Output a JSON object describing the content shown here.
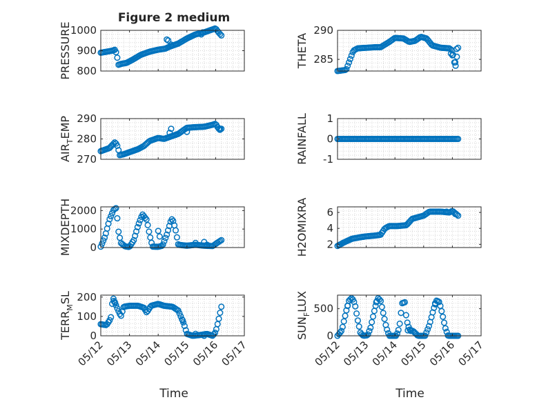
{
  "figure": {
    "title": "Figure 2 medium",
    "marker_color": "#0072BD",
    "grid": "dotted minor grid on",
    "x_axis_type": "date"
  },
  "chart_data": [
    {
      "id": "pressure",
      "type": "scatter",
      "ylabel_parts": [
        [
          "PRESSURE",
          ""
        ]
      ],
      "ylim": [
        800,
        1000
      ],
      "yticks": [
        800,
        900,
        1000
      ],
      "ytick_labels": [
        "800",
        "900",
        "1000"
      ],
      "xlim": [
        "05/12",
        "05/17"
      ],
      "xtick_labels": [],
      "x_day_range": [
        0,
        4.2
      ],
      "keypoints": [
        [
          0,
          890
        ],
        [
          0.4,
          900
        ],
        [
          0.5,
          905
        ],
        [
          0.55,
          885
        ],
        [
          0.62,
          830
        ],
        [
          0.7,
          835
        ],
        [
          0.9,
          840
        ],
        [
          1.1,
          855
        ],
        [
          1.4,
          880
        ],
        [
          1.7,
          895
        ],
        [
          2.0,
          905
        ],
        [
          2.25,
          910
        ],
        [
          2.4,
          920
        ],
        [
          2.7,
          935
        ],
        [
          3.0,
          960
        ],
        [
          3.3,
          980
        ],
        [
          3.6,
          990
        ],
        [
          3.9,
          1005
        ],
        [
          4.0,
          1010
        ],
        [
          4.1,
          990
        ],
        [
          4.2,
          975
        ]
      ],
      "extra_points": [
        [
          2.3,
          955
        ],
        [
          2.35,
          950
        ],
        [
          2.45,
          930
        ],
        [
          3.5,
          980
        ],
        [
          3.55,
          990
        ]
      ]
    },
    {
      "id": "theta",
      "type": "scatter",
      "ylabel_parts": [
        [
          "THETA",
          ""
        ]
      ],
      "ylim": [
        283,
        290
      ],
      "yticks": [
        285,
        290
      ],
      "ytick_labels": [
        "285",
        "290"
      ],
      "xlim": [
        "05/12",
        "05/17"
      ],
      "xtick_labels": [],
      "x_day_range": [
        0,
        4.2
      ],
      "keypoints": [
        [
          0,
          283
        ],
        [
          0.3,
          283.2
        ],
        [
          0.4,
          284.5
        ],
        [
          0.55,
          286.5
        ],
        [
          0.7,
          286.9
        ],
        [
          1.0,
          287
        ],
        [
          1.3,
          287.1
        ],
        [
          1.5,
          287.1
        ],
        [
          1.8,
          288
        ],
        [
          2.0,
          288.7
        ],
        [
          2.3,
          288.6
        ],
        [
          2.5,
          288
        ],
        [
          2.7,
          288.2
        ],
        [
          2.9,
          288.9
        ],
        [
          3.1,
          288.6
        ],
        [
          3.3,
          287.4
        ],
        [
          3.6,
          287
        ],
        [
          3.9,
          286.9
        ],
        [
          4.0,
          286.5
        ],
        [
          4.05,
          285
        ],
        [
          4.1,
          283.5
        ],
        [
          4.2,
          287
        ]
      ],
      "extra_points": [
        [
          3.95,
          286
        ],
        [
          4.0,
          285.7
        ],
        [
          4.1,
          284.5
        ],
        [
          4.15,
          286.8
        ]
      ]
    },
    {
      "id": "air_temp",
      "type": "scatter",
      "ylabel_parts": [
        [
          "AIR",
          ""
        ],
        [
          "T",
          "sub"
        ],
        [
          "EMP",
          ""
        ]
      ],
      "ylim": [
        270,
        290
      ],
      "yticks": [
        270,
        280,
        290
      ],
      "ytick_labels": [
        "270",
        "280",
        "290"
      ],
      "xlim": [
        "05/12",
        "05/17"
      ],
      "xtick_labels": [],
      "x_day_range": [
        0,
        4.2
      ],
      "keypoints": [
        [
          0,
          274
        ],
        [
          0.3,
          275.5
        ],
        [
          0.5,
          278.5
        ],
        [
          0.6,
          276
        ],
        [
          0.65,
          272
        ],
        [
          0.8,
          272.5
        ],
        [
          1.0,
          273.5
        ],
        [
          1.3,
          275
        ],
        [
          1.5,
          276.5
        ],
        [
          1.7,
          279
        ],
        [
          2.0,
          280.5
        ],
        [
          2.2,
          280
        ],
        [
          2.4,
          281
        ],
        [
          2.7,
          282.5
        ],
        [
          3.0,
          285.5
        ],
        [
          3.3,
          285.8
        ],
        [
          3.6,
          286
        ],
        [
          3.9,
          287
        ],
        [
          4.0,
          287.5
        ],
        [
          4.1,
          285
        ],
        [
          4.2,
          285
        ]
      ],
      "extra_points": [
        [
          2.4,
          283
        ],
        [
          2.45,
          285
        ],
        [
          3.0,
          283.5
        ],
        [
          4.15,
          284.5
        ]
      ]
    },
    {
      "id": "rainfall",
      "type": "scatter",
      "ylabel_parts": [
        [
          "RAINFALL",
          ""
        ]
      ],
      "ylim": [
        -1,
        1
      ],
      "yticks": [
        -1,
        0,
        1
      ],
      "ytick_labels": [
        "-1",
        "0",
        "1"
      ],
      "xlim": [
        "05/12",
        "05/17"
      ],
      "xtick_labels": [],
      "x_day_range": [
        0,
        4.2
      ],
      "keypoints": [
        [
          0,
          0
        ],
        [
          4.2,
          0
        ]
      ],
      "extra_points": []
    },
    {
      "id": "mixdepth",
      "type": "scatter",
      "ylabel_parts": [
        [
          "MIXDEPTH",
          ""
        ]
      ],
      "ylim": [
        0,
        2200
      ],
      "yticks": [
        0,
        1000,
        2000
      ],
      "ytick_labels": [
        "0",
        "1000",
        "2000"
      ],
      "xlim": [
        "05/12",
        "05/17"
      ],
      "xtick_labels": [],
      "x_day_range": [
        0,
        4.2
      ],
      "keypoints": [
        [
          0,
          50
        ],
        [
          0.15,
          600
        ],
        [
          0.3,
          1500
        ],
        [
          0.45,
          2050
        ],
        [
          0.55,
          2150
        ],
        [
          0.6,
          1000
        ],
        [
          0.7,
          250
        ],
        [
          0.85,
          60
        ],
        [
          1.0,
          30
        ],
        [
          1.15,
          400
        ],
        [
          1.3,
          1200
        ],
        [
          1.45,
          1800
        ],
        [
          1.6,
          1500
        ],
        [
          1.7,
          700
        ],
        [
          1.8,
          50
        ],
        [
          2.0,
          40
        ],
        [
          2.15,
          100
        ],
        [
          2.3,
          700
        ],
        [
          2.45,
          1500
        ],
        [
          2.5,
          1550
        ],
        [
          2.6,
          1000
        ],
        [
          2.7,
          150
        ],
        [
          3.0,
          100
        ],
        [
          3.3,
          150
        ],
        [
          3.6,
          100
        ],
        [
          3.9,
          80
        ],
        [
          4.05,
          250
        ],
        [
          4.2,
          400
        ]
      ],
      "extra_points": [
        [
          2.0,
          900
        ],
        [
          2.05,
          600
        ],
        [
          3.3,
          250
        ],
        [
          3.6,
          300
        ],
        [
          3.7,
          150
        ]
      ]
    },
    {
      "id": "h2omixra",
      "type": "scatter",
      "ylabel_parts": [
        [
          "H2OMIXRA",
          ""
        ]
      ],
      "ylim": [
        1.6,
        6.7
      ],
      "yticks": [
        2,
        4,
        6
      ],
      "ytick_labels": [
        "2",
        "4",
        "6"
      ],
      "xlim": [
        "05/12",
        "05/17"
      ],
      "xtick_labels": [],
      "x_day_range": [
        0,
        4.2
      ],
      "keypoints": [
        [
          0,
          1.8
        ],
        [
          0.2,
          2.2
        ],
        [
          0.5,
          2.7
        ],
        [
          0.8,
          2.9
        ],
        [
          1.0,
          3.0
        ],
        [
          1.3,
          3.1
        ],
        [
          1.5,
          3.2
        ],
        [
          1.65,
          4.0
        ],
        [
          1.8,
          4.3
        ],
        [
          2.1,
          4.3
        ],
        [
          2.4,
          4.4
        ],
        [
          2.6,
          5.2
        ],
        [
          2.9,
          5.5
        ],
        [
          3.0,
          5.6
        ],
        [
          3.2,
          6.1
        ],
        [
          3.6,
          6.1
        ],
        [
          3.9,
          6.0
        ],
        [
          4.0,
          6.2
        ],
        [
          4.2,
          5.6
        ]
      ],
      "extra_points": [
        [
          0.05,
          1.9
        ],
        [
          3.8,
          6.1
        ],
        [
          4.1,
          5.8
        ]
      ]
    },
    {
      "id": "terr_msl",
      "type": "scatter",
      "ylabel_parts": [
        [
          "TERR",
          ""
        ],
        [
          "M",
          "sub"
        ],
        [
          "SL",
          ""
        ]
      ],
      "ylim": [
        0,
        210
      ],
      "yticks": [
        0,
        100,
        200
      ],
      "ytick_labels": [
        "0",
        "100",
        "200"
      ],
      "xlim": [
        "05/12",
        "05/17"
      ],
      "xtick_labels": [
        "05/12",
        "05/13",
        "05/14",
        "05/15",
        "05/16",
        "05/17"
      ],
      "x_day_range": [
        0,
        4.2
      ],
      "keypoints": [
        [
          0,
          60
        ],
        [
          0.2,
          55
        ],
        [
          0.35,
          90
        ],
        [
          0.42,
          200
        ],
        [
          0.55,
          150
        ],
        [
          0.7,
          100
        ],
        [
          0.8,
          150
        ],
        [
          1.0,
          155
        ],
        [
          1.3,
          155
        ],
        [
          1.5,
          145
        ],
        [
          1.6,
          120
        ],
        [
          1.75,
          155
        ],
        [
          2.0,
          165
        ],
        [
          2.2,
          155
        ],
        [
          2.5,
          150
        ],
        [
          2.7,
          130
        ],
        [
          2.9,
          60
        ],
        [
          3.0,
          10
        ],
        [
          3.2,
          0
        ],
        [
          3.5,
          5
        ],
        [
          3.7,
          10
        ],
        [
          3.9,
          0
        ],
        [
          4.0,
          20
        ],
        [
          4.1,
          80
        ],
        [
          4.2,
          150
        ]
      ],
      "extra_points": [
        [
          0.45,
          180
        ],
        [
          0.5,
          170
        ],
        [
          2.85,
          80
        ],
        [
          3.3,
          10
        ],
        [
          3.6,
          0
        ]
      ]
    },
    {
      "id": "sun_flux",
      "type": "scatter",
      "ylabel_parts": [
        [
          "SUN",
          ""
        ],
        [
          "F",
          "sub"
        ],
        [
          "LUX",
          ""
        ]
      ],
      "ylim": [
        0,
        750
      ],
      "yticks": [
        0,
        500
      ],
      "ytick_labels": [
        "0",
        "500"
      ],
      "xlim": [
        "05/12",
        "05/17"
      ],
      "xtick_labels": [
        "05/12",
        "05/13",
        "05/14",
        "05/15",
        "05/16",
        "05/17"
      ],
      "x_day_range": [
        0,
        4.2
      ],
      "keypoints": [
        [
          0,
          0
        ],
        [
          0.15,
          100
        ],
        [
          0.3,
          450
        ],
        [
          0.4,
          650
        ],
        [
          0.5,
          700
        ],
        [
          0.6,
          600
        ],
        [
          0.7,
          300
        ],
        [
          0.8,
          50
        ],
        [
          0.9,
          0
        ],
        [
          1.05,
          10
        ],
        [
          1.15,
          150
        ],
        [
          1.3,
          500
        ],
        [
          1.4,
          700
        ],
        [
          1.5,
          650
        ],
        [
          1.6,
          400
        ],
        [
          1.7,
          150
        ],
        [
          1.8,
          0
        ],
        [
          2.05,
          0
        ],
        [
          2.15,
          150
        ],
        [
          2.25,
          600
        ],
        [
          2.35,
          620
        ],
        [
          2.4,
          300
        ],
        [
          2.5,
          120
        ],
        [
          2.65,
          80
        ],
        [
          2.8,
          0
        ],
        [
          3.05,
          0
        ],
        [
          3.2,
          200
        ],
        [
          3.35,
          500
        ],
        [
          3.45,
          650
        ],
        [
          3.55,
          620
        ],
        [
          3.65,
          400
        ],
        [
          3.75,
          150
        ],
        [
          3.85,
          0
        ],
        [
          4.2,
          0
        ]
      ],
      "extra_points": [
        [
          0.35,
          550
        ],
        [
          1.35,
          620
        ],
        [
          2.45,
          100
        ],
        [
          2.55,
          90
        ],
        [
          3.4,
          600
        ]
      ]
    }
  ]
}
